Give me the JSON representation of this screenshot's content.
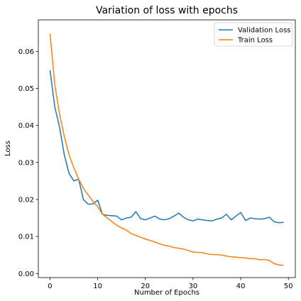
{
  "chart_data": {
    "type": "line",
    "title": "Variation of loss with epochs",
    "xlabel": "Number of Epochs",
    "ylabel": "Loss",
    "xlim": [
      -2.45,
      51.45
    ],
    "ylim": [
      -0.0011,
      0.0685
    ],
    "x_ticks": [
      0,
      10,
      20,
      30,
      40,
      50
    ],
    "x_tick_labels": [
      "0",
      "10",
      "20",
      "30",
      "40",
      "50"
    ],
    "y_ticks": [
      0.0,
      0.01,
      0.02,
      0.03,
      0.04,
      0.05,
      0.06
    ],
    "y_tick_labels": [
      "0.00",
      "0.01",
      "0.02",
      "0.03",
      "0.04",
      "0.05",
      "0.06"
    ],
    "grid": false,
    "legend_position": "top-right",
    "x": [
      0,
      1,
      2,
      3,
      4,
      5,
      6,
      7,
      8,
      9,
      10,
      11,
      12,
      13,
      14,
      15,
      16,
      17,
      18,
      19,
      20,
      21,
      22,
      23,
      24,
      25,
      26,
      27,
      28,
      29,
      30,
      31,
      32,
      33,
      34,
      35,
      36,
      37,
      38,
      39,
      40,
      41,
      42,
      43,
      44,
      45,
      46,
      47,
      48,
      49
    ],
    "series": [
      {
        "name": "Validation Loss",
        "color": "#1f77b4",
        "values": [
          0.0549,
          0.045,
          0.0395,
          0.032,
          0.027,
          0.025,
          0.0255,
          0.02,
          0.0187,
          0.0188,
          0.0198,
          0.016,
          0.0157,
          0.0156,
          0.0155,
          0.0145,
          0.015,
          0.0152,
          0.0167,
          0.0148,
          0.0145,
          0.015,
          0.0155,
          0.0147,
          0.0145,
          0.0148,
          0.0155,
          0.0163,
          0.0152,
          0.0145,
          0.0142,
          0.0147,
          0.0145,
          0.0143,
          0.0142,
          0.0147,
          0.015,
          0.016,
          0.0145,
          0.0155,
          0.0165,
          0.0143,
          0.015,
          0.0148,
          0.0147,
          0.0148,
          0.0152,
          0.014,
          0.0137,
          0.0138
        ]
      },
      {
        "name": "Train Loss",
        "color": "#ff7f0e",
        "values": [
          0.0648,
          0.051,
          0.043,
          0.037,
          0.032,
          0.0285,
          0.0255,
          0.023,
          0.0212,
          0.0195,
          0.018,
          0.016,
          0.015,
          0.014,
          0.013,
          0.0123,
          0.0117,
          0.0108,
          0.0103,
          0.0098,
          0.0093,
          0.0089,
          0.0085,
          0.008,
          0.0076,
          0.0074,
          0.007,
          0.0068,
          0.0066,
          0.0062,
          0.0058,
          0.0057,
          0.0056,
          0.0053,
          0.0051,
          0.0051,
          0.005,
          0.0047,
          0.0045,
          0.0044,
          0.0043,
          0.0042,
          0.004,
          0.004,
          0.0037,
          0.0038,
          0.0035,
          0.0027,
          0.0023,
          0.0022
        ]
      }
    ]
  }
}
